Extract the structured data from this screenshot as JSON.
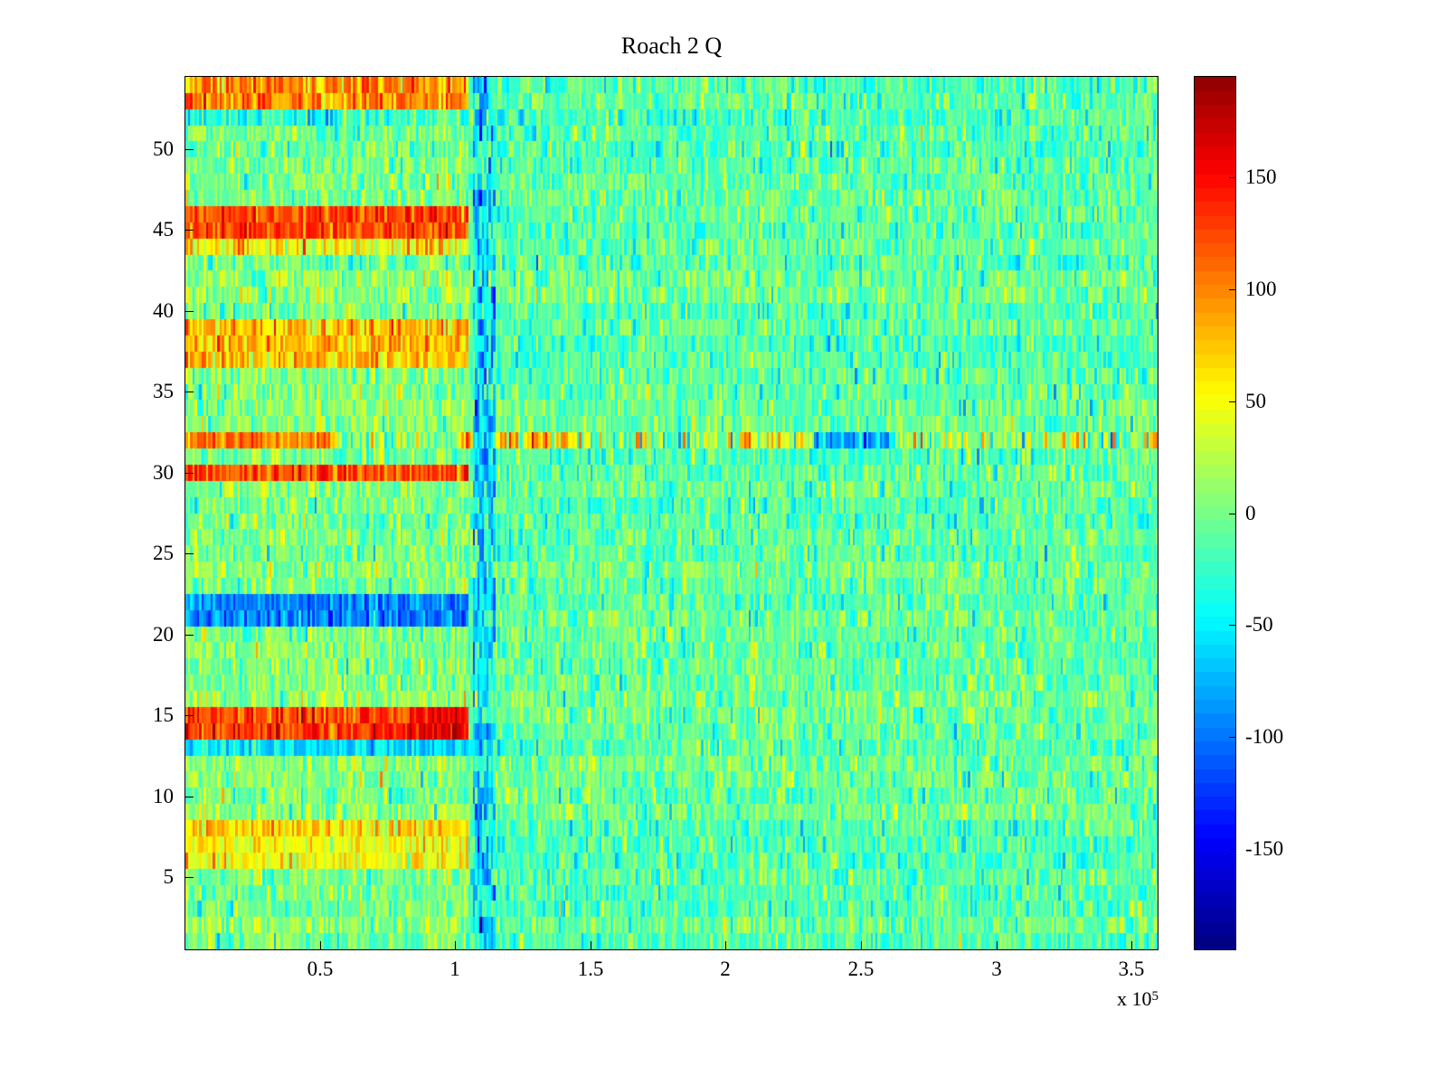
{
  "figure": {
    "background": "#ffffff",
    "axis_color": "#000000"
  },
  "chart_data": {
    "type": "heatmap",
    "title": "Roach 2 Q",
    "colormap": "jet",
    "x_range": [
      0,
      360000
    ],
    "y_range": [
      0.5,
      54.5
    ],
    "value_range": [
      -195,
      195
    ],
    "rows": 54,
    "cols": 430,
    "x_ticks": [
      {
        "label": "0.5",
        "value": 50000
      },
      {
        "label": "1",
        "value": 100000
      },
      {
        "label": "1.5",
        "value": 150000
      },
      {
        "label": "2",
        "value": 200000
      },
      {
        "label": "2.5",
        "value": 250000
      },
      {
        "label": "3",
        "value": 300000
      },
      {
        "label": "3.5",
        "value": 350000
      }
    ],
    "x_axis_multiplier": {
      "base": "x 10",
      "exp": "5"
    },
    "y_ticks": [
      {
        "label": "5",
        "value": 5
      },
      {
        "label": "10",
        "value": 10
      },
      {
        "label": "15",
        "value": 15
      },
      {
        "label": "20",
        "value": 20
      },
      {
        "label": "25",
        "value": 25
      },
      {
        "label": "30",
        "value": 30
      },
      {
        "label": "35",
        "value": 35
      },
      {
        "label": "40",
        "value": 40
      },
      {
        "label": "45",
        "value": 45
      },
      {
        "label": "50",
        "value": 50
      }
    ],
    "colorbar_ticks": [
      {
        "label": "150",
        "value": 150
      },
      {
        "label": "100",
        "value": 100
      },
      {
        "label": "50",
        "value": 50
      },
      {
        "label": "0",
        "value": 0
      },
      {
        "label": "-50",
        "value": -50
      },
      {
        "label": "-100",
        "value": -100
      },
      {
        "label": "-150",
        "value": -150
      }
    ],
    "background": {
      "mean": -10,
      "std": 24,
      "row_base_spread": 9
    },
    "left_region": {
      "x_max": 105000,
      "bias": 12,
      "extra_std": 9
    },
    "vertical_stripe": {
      "x0": 106000,
      "x1": 114800,
      "value": -55,
      "std": 38
    },
    "bands": [
      {
        "name": "row-32-speckle",
        "y0": 31.5,
        "y1": 32.5,
        "x0": 55000,
        "x1": 360000,
        "value": 12,
        "std": 45
      },
      {
        "name": "top-orange",
        "y0": 52.55,
        "y1": 54.5,
        "x0": 0,
        "x1": 105000,
        "value": 95,
        "std": 28
      },
      {
        "name": "cyan-52",
        "y0": 51.55,
        "y1": 52.55,
        "x0": 0,
        "x1": 105000,
        "value": -30,
        "std": 28
      },
      {
        "name": "red-45",
        "y0": 44.45,
        "y1": 46.6,
        "x0": 0,
        "x1": 105000,
        "value": 122,
        "std": 24
      },
      {
        "name": "orange-44",
        "y0": 43.5,
        "y1": 44.45,
        "x0": 0,
        "x1": 105000,
        "value": 55,
        "std": 30
      },
      {
        "name": "orange-38",
        "y0": 36.45,
        "y1": 39.45,
        "x0": 0,
        "x1": 105000,
        "value": 78,
        "std": 26
      },
      {
        "name": "red-30",
        "y0": 29.45,
        "y1": 30.55,
        "x0": 0,
        "x1": 105000,
        "value": 122,
        "std": 26
      },
      {
        "name": "blue-22",
        "y0": 20.5,
        "y1": 22.55,
        "x0": 0,
        "x1": 105000,
        "value": -95,
        "std": 24
      },
      {
        "name": "red-14",
        "y0": 13.45,
        "y1": 15.45,
        "x0": 0,
        "x1": 105000,
        "value": 128,
        "std": 24
      },
      {
        "name": "red-14-hot",
        "y0": 13.45,
        "y1": 15.45,
        "x0": 83000,
        "x1": 105000,
        "value": 158,
        "std": 18
      },
      {
        "name": "cyan-13",
        "y0": 12.45,
        "y1": 13.45,
        "x0": 0,
        "x1": 118000,
        "value": -55,
        "std": 22
      },
      {
        "name": "orange-8",
        "y0": 7.45,
        "y1": 8.55,
        "x0": 0,
        "x1": 105000,
        "value": 70,
        "std": 24
      },
      {
        "name": "yellow-6",
        "y0": 5.45,
        "y1": 7.45,
        "x0": 0,
        "x1": 105000,
        "value": 48,
        "std": 22
      },
      {
        "name": "red-32-left",
        "y0": 31.5,
        "y1": 32.5,
        "x0": 0,
        "x1": 55000,
        "value": 112,
        "std": 28
      },
      {
        "name": "orange-32-mid",
        "y0": 31.5,
        "y1": 32.5,
        "x0": 99000,
        "x1": 147000,
        "value": 62,
        "std": 45
      },
      {
        "name": "orange-32-b",
        "y0": 31.5,
        "y1": 32.5,
        "x0": 205000,
        "x1": 230000,
        "value": 50,
        "std": 45
      },
      {
        "name": "blue-32",
        "y0": 31.5,
        "y1": 32.5,
        "x0": 233000,
        "x1": 263000,
        "value": -75,
        "std": 28
      }
    ]
  }
}
